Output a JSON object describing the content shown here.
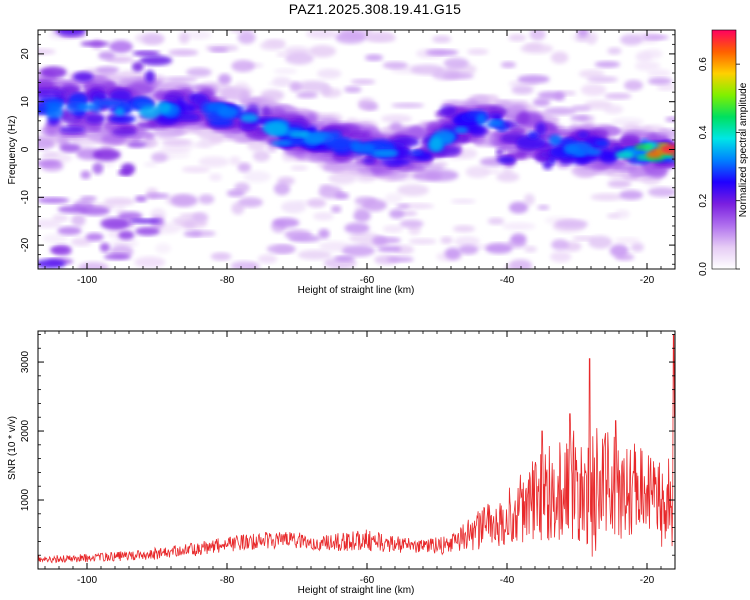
{
  "page": {
    "title": "PAZ1.2025.308.19.41.G15"
  },
  "chart_data": [
    {
      "type": "heatmap",
      "name": "spectrogram",
      "xlabel": "Height of straight line (km)",
      "ylabel": "Frequency (Hz)",
      "xlim": [
        -107,
        -16
      ],
      "ylim": [
        -25,
        25
      ],
      "xticks": [
        -100,
        -80,
        -60,
        -40,
        -20
      ],
      "xtick_labels": [
        "-100",
        "-80",
        "-60",
        "-40",
        "-20"
      ],
      "yticks": [
        -20,
        -10,
        0,
        10,
        20
      ],
      "ytick_labels": [
        "-20",
        "-10",
        "0",
        "10",
        "20"
      ],
      "ridge": {
        "description_points_x_km": [
          -106,
          -100,
          -92,
          -85,
          -78,
          -72,
          -66,
          -60,
          -56,
          -50,
          -45,
          -40,
          -35,
          -30,
          -25,
          -20,
          -16
        ],
        "frequency_hz": [
          9,
          9,
          8,
          9,
          7,
          4,
          2,
          0,
          -1,
          1,
          6,
          5,
          2,
          0,
          0,
          -1,
          -1
        ]
      },
      "colorbar": {
        "label": "Normalized spectral amplitude",
        "range": [
          0.0,
          0.7
        ],
        "ticks": [
          0.0,
          0.2,
          0.4,
          0.6
        ],
        "tick_labels": [
          "0.0",
          "0.2",
          "0.4",
          "0.6"
        ],
        "colors": [
          "#ffffff",
          "#e6ccf5",
          "#b070ee",
          "#7a1fe0",
          "#2000ff",
          "#0080ff",
          "#00e6e6",
          "#00e060",
          "#80f000",
          "#ffd000",
          "#ff6000",
          "#ff0060"
        ]
      }
    },
    {
      "type": "line",
      "name": "snr",
      "xlabel": "Height of straight line (km)",
      "ylabel": "SNR (10 * v/v)",
      "xlim": [
        -107,
        -16
      ],
      "ylim": [
        0,
        3450
      ],
      "xticks": [
        -100,
        -80,
        -60,
        -40,
        -20
      ],
      "xtick_labels": [
        "-100",
        "-80",
        "-60",
        "-40",
        "-20"
      ],
      "yticks": [
        1000,
        2000,
        3000
      ],
      "ytick_labels": [
        "1000",
        "2000",
        "3000"
      ],
      "color": "#e8282a",
      "envelope": {
        "x": [
          -107,
          -100,
          -92,
          -85,
          -78,
          -74,
          -70,
          -66,
          -62,
          -60,
          -56,
          -52,
          -48,
          -45,
          -42,
          -40,
          -38,
          -35,
          -33,
          -31,
          -29,
          -28,
          -27,
          -25,
          -23,
          -21,
          -19,
          -17.5,
          -16.2,
          -16
        ],
        "mean": [
          150,
          160,
          200,
          280,
          380,
          420,
          410,
          380,
          400,
          420,
          360,
          320,
          360,
          520,
          650,
          750,
          900,
          1050,
          1150,
          1200,
          1180,
          1250,
          1300,
          1200,
          1150,
          1080,
          1000,
          950,
          900,
          1600
        ],
        "amplitude": [
          60,
          60,
          80,
          100,
          120,
          130,
          120,
          120,
          150,
          160,
          120,
          100,
          150,
          250,
          350,
          450,
          550,
          650,
          750,
          800,
          850,
          1200,
          950,
          800,
          750,
          700,
          650,
          650,
          800,
          1800
        ]
      },
      "peaks": [
        {
          "x": -28.2,
          "y": 3050
        },
        {
          "x": -31.0,
          "y": 2250
        },
        {
          "x": -35.0,
          "y": 2000
        },
        {
          "x": -24.5,
          "y": 2150
        },
        {
          "x": -16.2,
          "y": 3400
        }
      ]
    }
  ]
}
